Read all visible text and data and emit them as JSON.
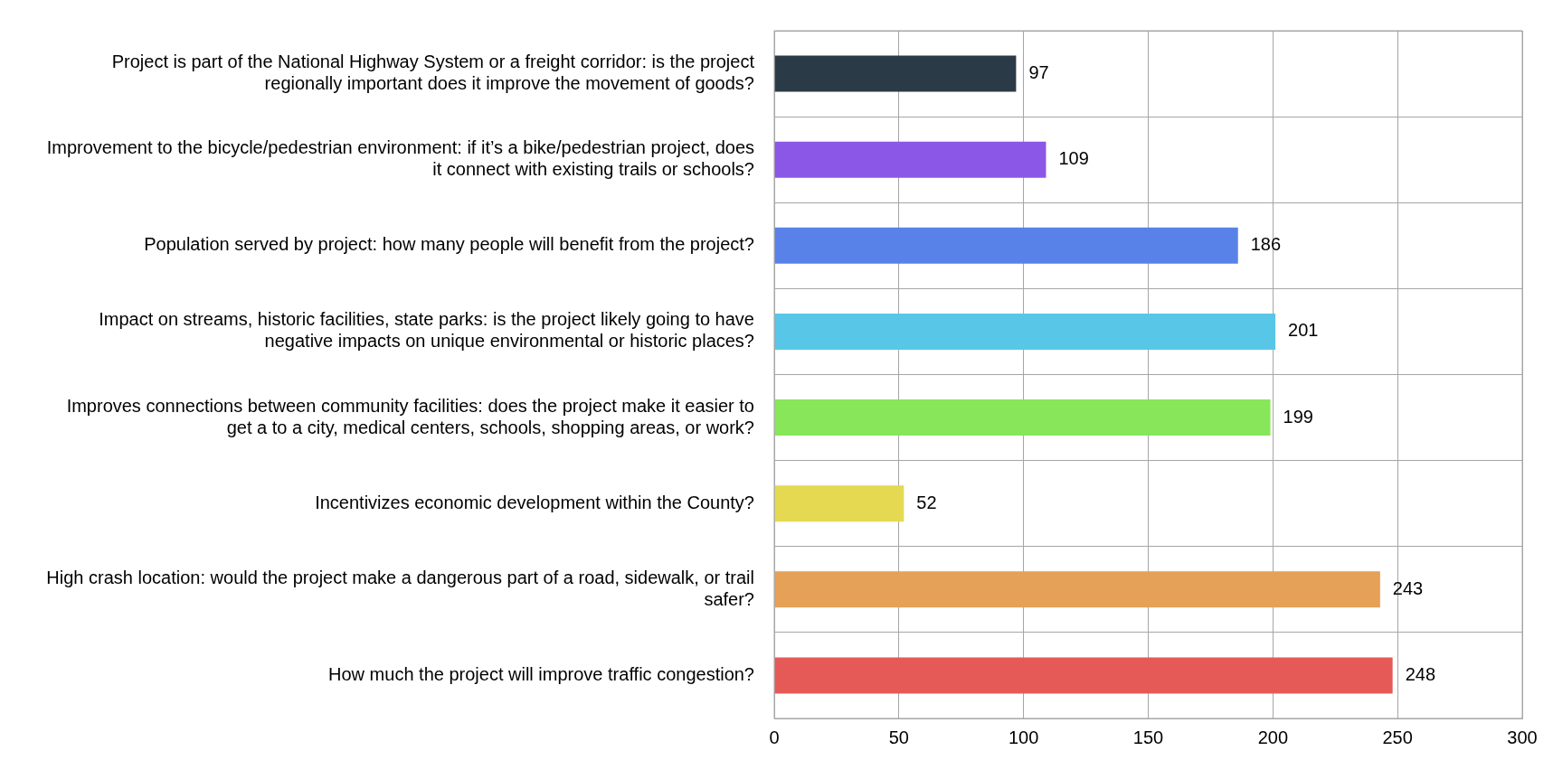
{
  "chart_data": {
    "type": "bar",
    "orientation": "horizontal",
    "categories": [
      "Project is part of the National Highway System or a freight corridor: is the project regionally important does it improve the movement of goods?",
      "Improvement to the bicycle/pedestrian environment: if it’s a bike/pedestrian project, does it connect with existing trails or schools?",
      "Population served by project: how many people will benefit from the project?",
      "Impact on streams, historic facilities, state parks: is the project likely going to have negative impacts on unique environmental or historic places?",
      "Improves connections between community facilities: does the project make it easier to get a to a city, medical centers, schools, shopping areas, or work?",
      "Incentivizes economic development within the County?",
      "High crash location: would the project make a dangerous part of a road, sidewalk, or trail safer?",
      "How much the project will improve traffic congestion?"
    ],
    "values": [
      97,
      109,
      186,
      201,
      199,
      52,
      243,
      248
    ],
    "colors": [
      "#2b3a47",
      "#8b57e6",
      "#5882e8",
      "#58c6e6",
      "#87e65a",
      "#e5d952",
      "#e5a157",
      "#e55a57"
    ],
    "xlim": [
      0,
      300
    ],
    "xticks": [
      0,
      50,
      100,
      150,
      200,
      250,
      300
    ],
    "grid": true,
    "legend": false,
    "data_labels": true
  }
}
